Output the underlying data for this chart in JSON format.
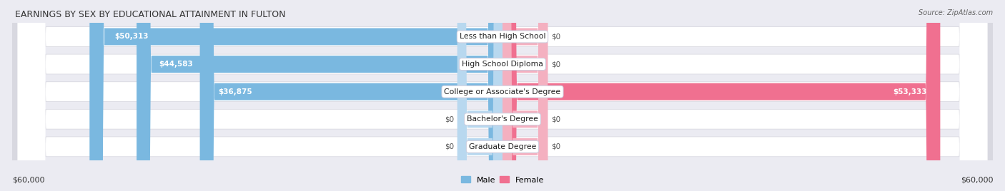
{
  "title": "EARNINGS BY SEX BY EDUCATIONAL ATTAINMENT IN FULTON",
  "source": "Source: ZipAtlas.com",
  "categories": [
    "Less than High School",
    "High School Diploma",
    "College or Associate's Degree",
    "Bachelor's Degree",
    "Graduate Degree"
  ],
  "male_values": [
    50313,
    44583,
    36875,
    0,
    0
  ],
  "female_values": [
    0,
    0,
    53333,
    0,
    0
  ],
  "male_color": "#7ab8e0",
  "male_stub_color": "#b8d8ef",
  "female_color": "#f07090",
  "female_stub_color": "#f4b0c0",
  "max_value": 60000,
  "stub_value": 5500,
  "bar_height": 0.62,
  "background_color": "#ebebf2",
  "row_bg_color": "#f5f5f8",
  "row_line_color": "#d8d8e0",
  "xlabel_left": "$60,000",
  "xlabel_right": "$60,000",
  "legend_male": "Male",
  "legend_female": "Female",
  "title_fontsize": 9,
  "label_fontsize": 7.8,
  "value_fontsize": 7.5,
  "tick_fontsize": 8
}
